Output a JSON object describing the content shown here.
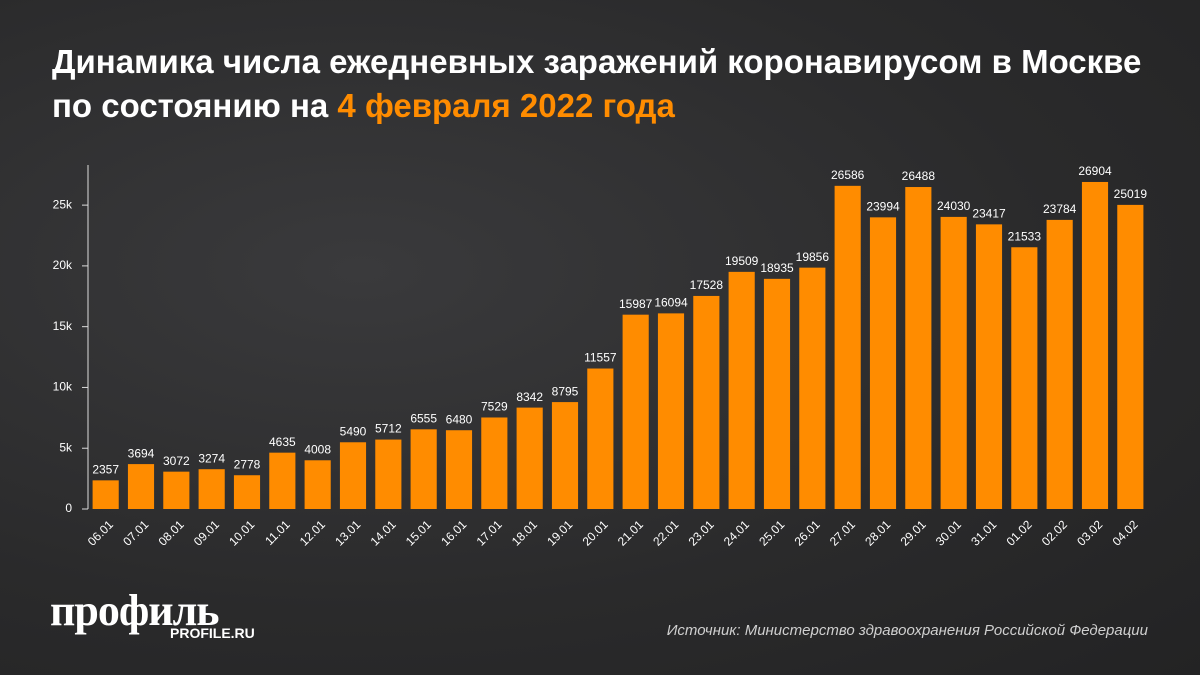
{
  "chart_data": {
    "type": "bar",
    "title": "Динамика числа ежедневных заражений коронавирусом в Москве по состоянию на",
    "title_highlight": "4 февраля 2022 года",
    "categories": [
      "06.01",
      "07.01",
      "08.01",
      "09.01",
      "10.01",
      "11.01",
      "12.01",
      "13.01",
      "14.01",
      "15.01",
      "16.01",
      "17.01",
      "18.01",
      "19.01",
      "20.01",
      "21.01",
      "22.01",
      "23.01",
      "24.01",
      "25.01",
      "26.01",
      "27.01",
      "28.01",
      "29.01",
      "30.01",
      "31.01",
      "01.02",
      "02.02",
      "03.02",
      "04.02"
    ],
    "values": [
      2357,
      3694,
      3072,
      3274,
      2778,
      4635,
      4008,
      5490,
      5712,
      6555,
      6480,
      7529,
      8342,
      8795,
      11557,
      15987,
      16094,
      17528,
      19509,
      18935,
      19856,
      26586,
      23994,
      26488,
      24030,
      23417,
      21533,
      23784,
      26904,
      25019
    ],
    "color": "#ff8c00",
    "ylim": [
      0,
      28300
    ],
    "yticks": [
      0,
      {
        "value": 5000,
        "label": "5k"
      },
      {
        "value": 10000,
        "label": "10k"
      },
      {
        "value": 15000,
        "label": "15k"
      },
      {
        "value": 20000,
        "label": "20k"
      },
      {
        "value": 25000,
        "label": "25k"
      }
    ],
    "grid": false,
    "logo": "профиль",
    "logo_url": "PROFILE.RU",
    "source": "Источник: Министерство здравоохранения Российской Федерации"
  }
}
